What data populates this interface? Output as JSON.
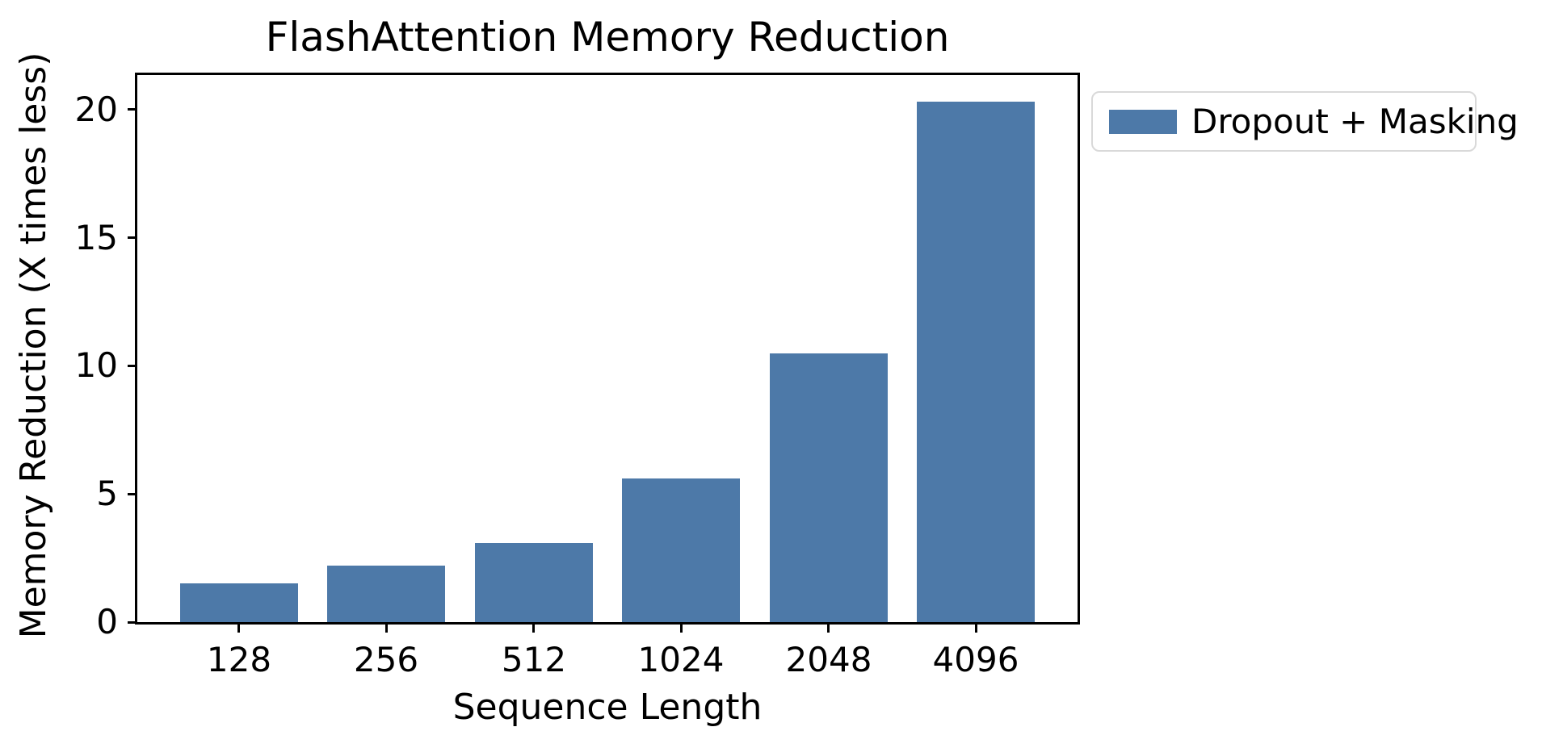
{
  "chart_data": {
    "type": "bar",
    "title": "FlashAttention Memory Reduction",
    "xlabel": "Sequence Length",
    "ylabel": "Memory Reduction (X times less)",
    "categories": [
      "128",
      "256",
      "512",
      "1024",
      "2048",
      "4096"
    ],
    "series": [
      {
        "name": "Dropout + Masking",
        "values": [
          1.5,
          2.2,
          3.1,
          5.6,
          10.5,
          20.3
        ]
      }
    ],
    "y_ticks": [
      0,
      5,
      10,
      15,
      20
    ],
    "ylim": [
      0,
      21.35
    ],
    "grid": false,
    "legend_position": "outside-upper-right",
    "bar_color": "#4d79a8",
    "axis_color": "#000000",
    "legend_border_color": "#d9d9d9"
  }
}
